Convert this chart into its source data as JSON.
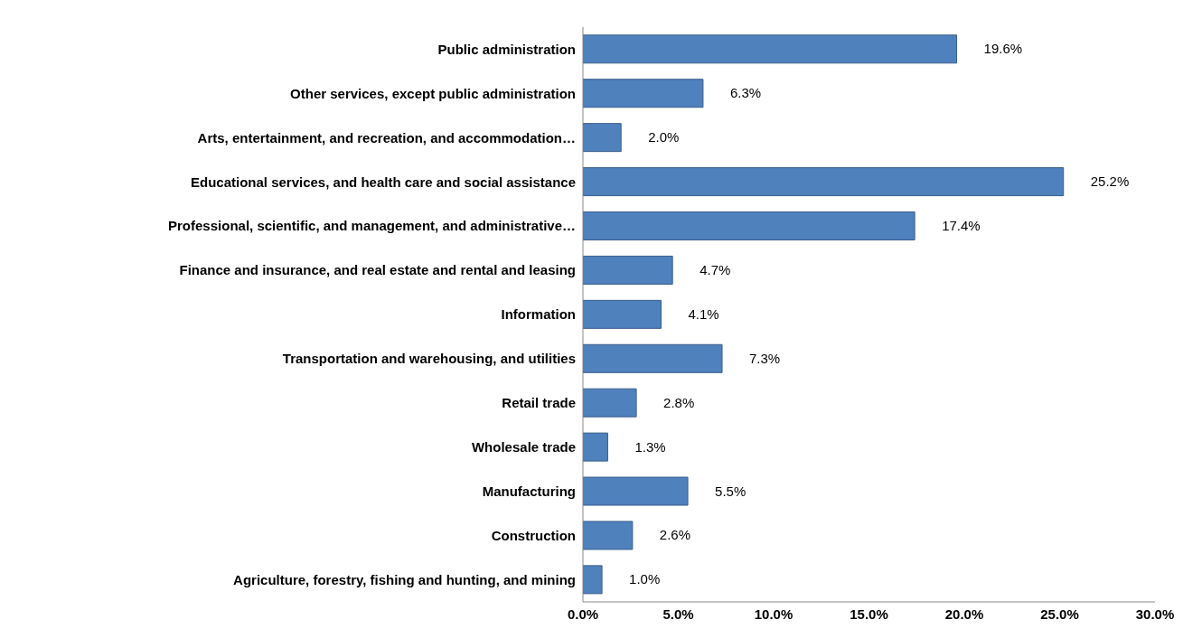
{
  "chart_data": {
    "type": "bar",
    "orientation": "horizontal",
    "categories": [
      "Public administration",
      "Other services, except public administration",
      "Arts, entertainment, and recreation, and accommodation…",
      "Educational services, and health care and social assistance",
      "Professional, scientific, and management, and administrative…",
      "Finance and insurance, and real estate and rental and leasing",
      "Information",
      "Transportation and warehousing, and utilities",
      "Retail trade",
      "Wholesale trade",
      "Manufacturing",
      "Construction",
      "Agriculture, forestry, fishing and hunting, and mining"
    ],
    "values": [
      19.6,
      6.3,
      2.0,
      25.2,
      17.4,
      4.7,
      4.1,
      7.3,
      2.8,
      1.3,
      5.5,
      2.6,
      1.0
    ],
    "value_labels": [
      "19.6%",
      "6.3%",
      "2.0%",
      "25.2%",
      "17.4%",
      "4.7%",
      "4.1%",
      "7.3%",
      "2.8%",
      "1.3%",
      "5.5%",
      "2.6%",
      "1.0%"
    ],
    "color": "#4f81bd",
    "xlim": [
      0,
      30
    ],
    "xticks": [
      {
        "value": 0,
        "label": "0.0%"
      },
      {
        "value": 5,
        "label": "5.0%"
      },
      {
        "value": 10,
        "label": "10.0%"
      },
      {
        "value": 15,
        "label": "15.0%"
      },
      {
        "value": 20,
        "label": "20.0%"
      },
      {
        "value": 25,
        "label": "25.0%"
      },
      {
        "value": 30,
        "label": "30.0%"
      }
    ]
  }
}
